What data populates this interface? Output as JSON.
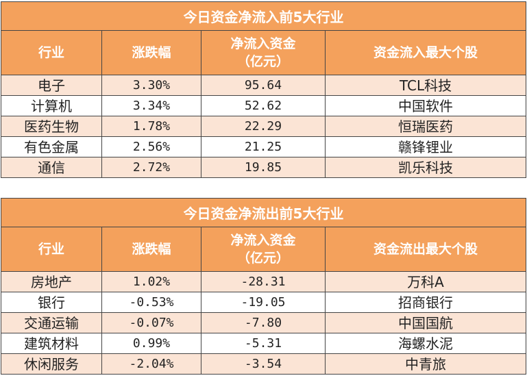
{
  "inflow": {
    "title": "今日资金净流入前5大行业",
    "headers": [
      "行业",
      "涨跌幅",
      "净流入资金\n（亿元）",
      "资金流入最大个股"
    ],
    "rows": [
      {
        "industry": "电子",
        "change": "3.30%",
        "amount": "95.64",
        "top_stock": "TCL科技"
      },
      {
        "industry": "计算机",
        "change": "3.34%",
        "amount": "52.62",
        "top_stock": "中国软件"
      },
      {
        "industry": "医药生物",
        "change": "1.78%",
        "amount": "22.29",
        "top_stock": "恒瑞医药"
      },
      {
        "industry": "有色金属",
        "change": "2.56%",
        "amount": "21.25",
        "top_stock": "赣锋锂业"
      },
      {
        "industry": "通信",
        "change": "2.72%",
        "amount": "19.85",
        "top_stock": "凯乐科技"
      }
    ]
  },
  "outflow": {
    "title": "今日资金净流出前5大行业",
    "headers": [
      "行业",
      "涨跌幅",
      "净流入资金\n（亿元）",
      "资金流出最大个股"
    ],
    "rows": [
      {
        "industry": "房地产",
        "change": "1.02%",
        "amount": "-28.31",
        "top_stock": "万科A"
      },
      {
        "industry": "银行",
        "change": "-0.53%",
        "amount": "-19.05",
        "top_stock": "招商银行"
      },
      {
        "industry": "交通运输",
        "change": "-0.07%",
        "amount": "-7.80",
        "top_stock": "中国国航"
      },
      {
        "industry": "建筑材料",
        "change": "0.99%",
        "amount": "-5.31",
        "top_stock": "海螺水泥"
      },
      {
        "industry": "休闲服务",
        "change": "-2.04%",
        "amount": "-3.54",
        "top_stock": "中青旅"
      }
    ]
  },
  "colors": {
    "header_bg": "#f4a15c",
    "stripe_bg": "#fbe4d5",
    "border": "#444444"
  }
}
